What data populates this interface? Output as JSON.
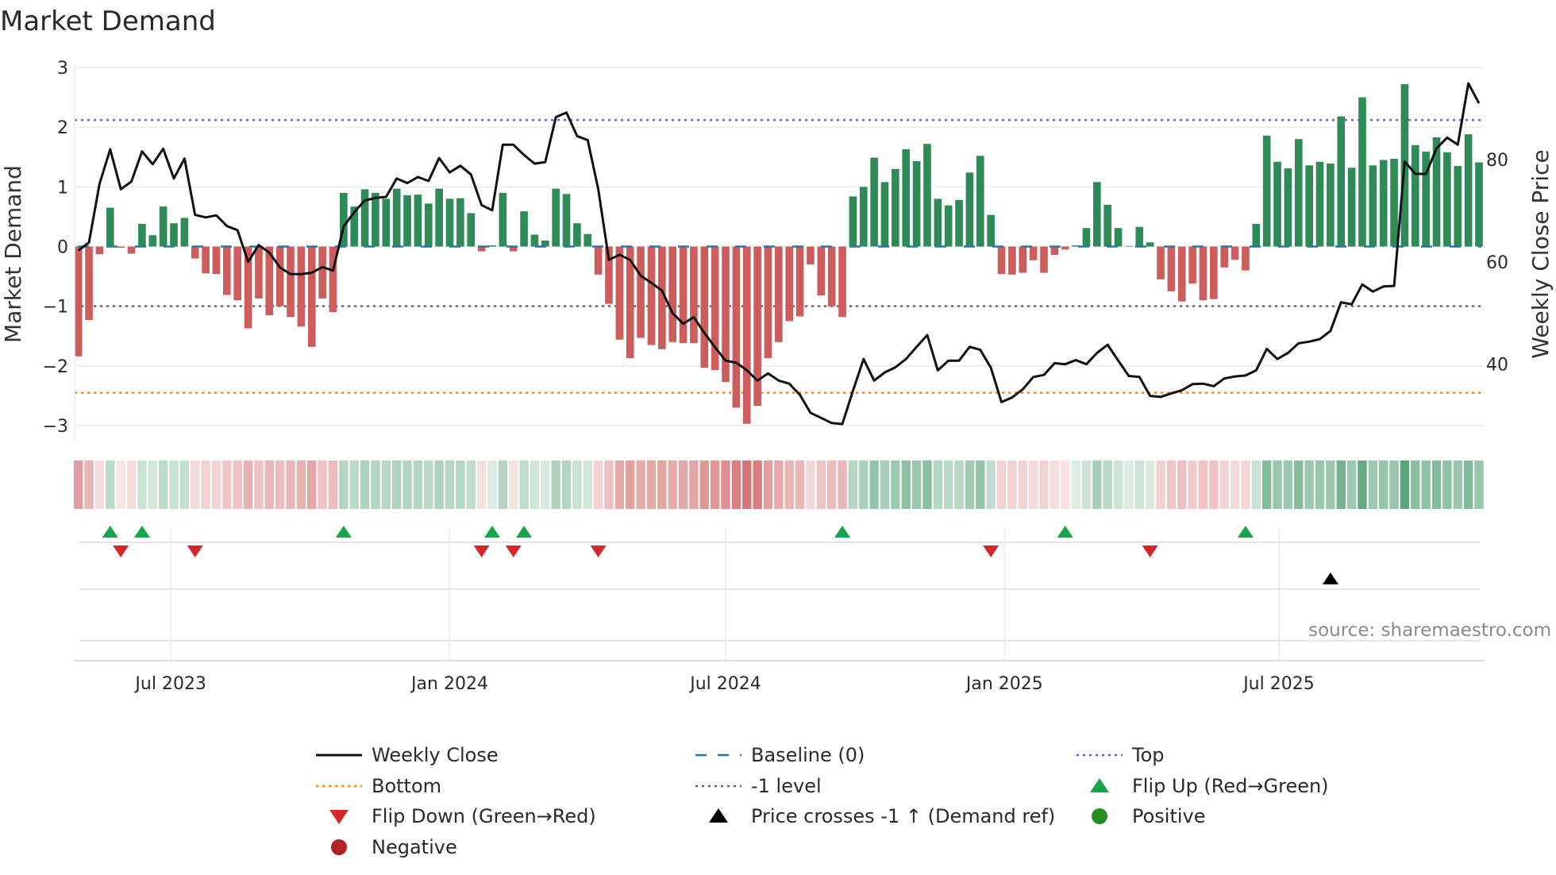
{
  "chart_data": {
    "type": "bar",
    "title": "Market Demand",
    "ylabel": "Market Demand",
    "y2label": "Weekly Close Price",
    "ylim": [
      -3,
      3
    ],
    "y2lim": [
      28,
      98
    ],
    "yticks": [
      "3",
      "2",
      "1",
      "0",
      "−1",
      "−2",
      "−3"
    ],
    "y2ticks": [
      "80",
      "60",
      "40"
    ],
    "xticks": [
      {
        "label": "Jul 2023",
        "date": "2023-07-01"
      },
      {
        "label": "Jan 2024",
        "date": "2024-01-01"
      },
      {
        "label": "Jul 2024",
        "date": "2024-07-01"
      },
      {
        "label": "Jan 2025",
        "date": "2025-01-01"
      },
      {
        "label": "Jul 2025",
        "date": "2025-07-01"
      }
    ],
    "start_date": "2023-05-01",
    "frequency": "weekly",
    "demand": [
      -1.84,
      -1.23,
      -0.13,
      0.65,
      -0.02,
      -0.12,
      0.38,
      0.19,
      0.67,
      0.39,
      0.48,
      -0.2,
      -0.45,
      -0.46,
      -0.81,
      -0.9,
      -1.37,
      -0.87,
      -1.15,
      -1.0,
      -1.18,
      -1.34,
      -1.68,
      -0.87,
      -1.1,
      0.9,
      0.67,
      0.96,
      0.9,
      0.8,
      0.97,
      0.86,
      0.87,
      0.72,
      0.97,
      0.8,
      0.81,
      0.56,
      -0.08,
      0.02,
      0.9,
      -0.08,
      0.59,
      0.2,
      0.1,
      0.97,
      0.88,
      0.39,
      0.21,
      -0.47,
      -0.96,
      -1.56,
      -1.87,
      -1.53,
      -1.65,
      -1.72,
      -1.6,
      -1.62,
      -1.62,
      -2.03,
      -2.07,
      -2.27,
      -2.7,
      -2.97,
      -2.67,
      -1.87,
      -1.6,
      -1.25,
      -1.17,
      -0.3,
      -0.82,
      -1.0,
      -1.18,
      0.84,
      1.0,
      1.49,
      1.08,
      1.3,
      1.63,
      1.43,
      1.72,
      0.8,
      0.69,
      0.78,
      1.24,
      1.52,
      0.53,
      -0.46,
      -0.47,
      -0.44,
      -0.23,
      -0.44,
      -0.14,
      -0.05,
      0.02,
      0.31,
      1.08,
      0.7,
      0.31,
      0.01,
      0.33,
      0.07,
      -0.55,
      -0.75,
      -0.92,
      -0.62,
      -0.9,
      -0.88,
      -0.35,
      -0.22,
      -0.4,
      0.38,
      1.86,
      1.42,
      1.31,
      1.8,
      1.36,
      1.42,
      1.39,
      2.18,
      1.32,
      2.5,
      1.36,
      1.45,
      1.47,
      2.72,
      1.7,
      1.59,
      1.83,
      1.58,
      1.35,
      1.88,
      1.41
    ],
    "weekly_close": [
      62.2,
      63.8,
      75.3,
      82.0,
      74.2,
      75.7,
      81.6,
      79.1,
      82.1,
      76.3,
      80.2,
      69.2,
      68.7,
      69.1,
      67.0,
      66.2,
      60.0,
      63.3,
      61.8,
      58.9,
      57.6,
      57.6,
      57.9,
      59.0,
      58.3,
      66.9,
      69.7,
      72.0,
      72.5,
      72.7,
      76.3,
      75.4,
      76.6,
      75.8,
      80.3,
      77.5,
      78.8,
      77.1,
      71.1,
      70.1,
      82.9,
      82.9,
      80.9,
      79.2,
      79.5,
      88.3,
      89.2,
      84.6,
      83.8,
      74.2,
      60.4,
      61.4,
      60.4,
      57.3,
      55.9,
      54.4,
      50.0,
      47.9,
      49.2,
      46.1,
      43.3,
      40.7,
      40.3,
      38.8,
      36.8,
      38.2,
      36.8,
      36.2,
      34.0,
      30.5,
      29.5,
      28.5,
      28.3,
      34.8,
      41.0,
      36.8,
      38.4,
      39.4,
      41.0,
      43.4,
      45.7,
      38.8,
      40.7,
      40.7,
      43.4,
      42.8,
      39.3,
      32.6,
      33.5,
      35.1,
      37.5,
      37.9,
      40.2,
      40.0,
      40.8,
      40.0,
      42.2,
      43.8,
      40.7,
      37.7,
      37.5,
      33.8,
      33.6,
      34.3,
      34.9,
      36.1,
      36.2,
      35.7,
      37.2,
      37.6,
      37.8,
      38.8,
      43.0,
      41.0,
      42.2,
      44.1,
      44.4,
      44.9,
      46.5,
      52.1,
      51.7,
      55.6,
      54.2,
      55.2,
      55.3,
      79.6,
      77.2,
      77.2,
      82.2,
      84.3,
      82.9,
      94.9,
      91.0
    ],
    "levels": {
      "baseline": 0,
      "top": 2.12,
      "minus_one": -1,
      "bottom": -2.45
    },
    "flip_up_dates": [
      "2023-05-22",
      "2023-06-12",
      "2023-10-23",
      "2024-01-29",
      "2024-02-19",
      "2024-09-16",
      "2025-02-10",
      "2025-06-09"
    ],
    "flip_down_dates": [
      "2023-05-29",
      "2023-07-17",
      "2024-01-22",
      "2024-02-12",
      "2024-04-08",
      "2024-12-23",
      "2025-04-07"
    ],
    "price_cross_dates": [
      "2025-08-04"
    ],
    "legend": {
      "placement": "bottom",
      "entries": [
        "Weekly Close",
        "Baseline (0)",
        "Top",
        "Bottom",
        "-1 level",
        "Flip Up (Red→Green)",
        "Flip Down (Green→Red)",
        "Price crosses -1 ↑ (Demand ref)",
        "Positive",
        "Negative"
      ]
    },
    "source": "source: sharemaestro.com"
  },
  "colors": {
    "positive": "#2e8b57",
    "negative": "#cd5c5c",
    "line": "#111111",
    "baseline": "#1f77b4",
    "top": "#6a5acd",
    "bottom": "#ff7f0e",
    "minus_one": "#666666",
    "flip_up": "#1aa34a",
    "flip_down": "#d62728",
    "cross": "#000000",
    "positive_dot": "#228b22",
    "negative_dot": "#b22222"
  }
}
